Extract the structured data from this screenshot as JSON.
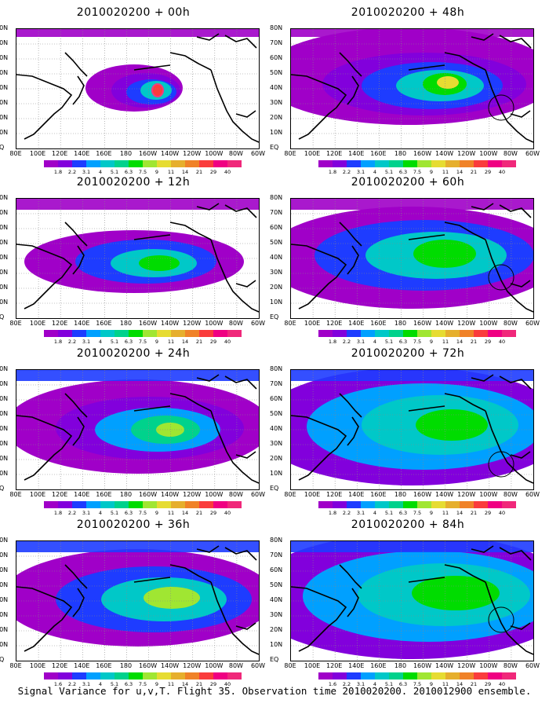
{
  "panels": [
    {
      "title": "2010020200 + 00h"
    },
    {
      "title": "2010020200 + 48h"
    },
    {
      "title": "2010020200 + 12h"
    },
    {
      "title": "2010020200 + 60h"
    },
    {
      "title": "2010020200 + 24h"
    },
    {
      "title": "2010020200 + 72h"
    },
    {
      "title": "2010020200 + 36h"
    },
    {
      "title": "2010020200 + 84h"
    }
  ],
  "lat_labels": [
    "80N",
    "70N",
    "60N",
    "50N",
    "40N",
    "30N",
    "20N",
    "10N",
    "EQ"
  ],
  "lon_labels": [
    "80E",
    "100E",
    "120E",
    "140E",
    "160E",
    "180",
    "160W",
    "140W",
    "120W",
    "100W",
    "80W",
    "60W"
  ],
  "colorbar": {
    "labels": [
      "1.8",
      "2.2",
      "3.1",
      "4",
      "5.1",
      "6.3",
      "7.5",
      "9",
      "11",
      "14",
      "21",
      "29",
      "40"
    ],
    "colors": [
      "#a000c8",
      "#8200dc",
      "#1e3cff",
      "#00a0ff",
      "#00c8c8",
      "#00d28c",
      "#00dc00",
      "#a0e632",
      "#e6dc32",
      "#e6af2d",
      "#f08228",
      "#fa3c3c",
      "#f00082"
    ],
    "panel_labels_lower": [
      [
        "1.8",
        "2.2",
        "3.1",
        "4",
        "5.1",
        "6.3",
        "7.5",
        "9",
        "11",
        "14",
        "21",
        "29",
        "40"
      ],
      [
        "1.6",
        "2.2",
        "3.1",
        "4",
        "5.1",
        "6.3",
        "7.5",
        "9",
        "11",
        "14",
        "21",
        "29",
        "40"
      ]
    ]
  },
  "caption": "Signal Variance for u,v,T. Flight 35. Observation time 2010020200. 2010012900 ensemble."
}
